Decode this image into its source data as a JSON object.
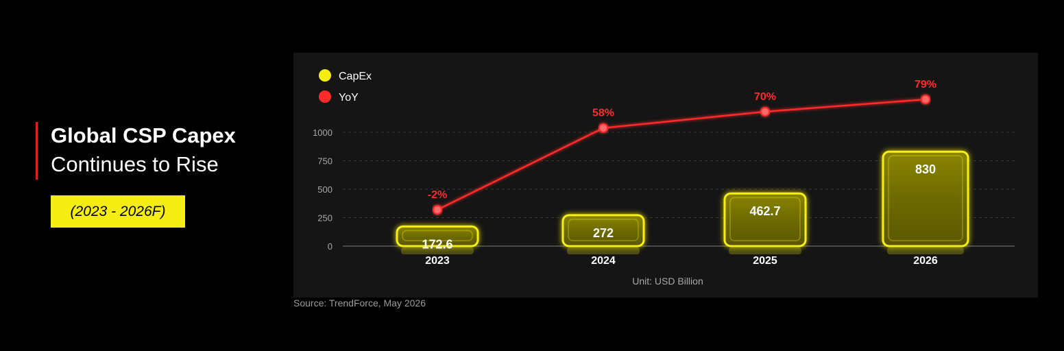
{
  "title": {
    "line1": "Global CSP Capex",
    "line2": "Continues to Rise",
    "period": "(2023 - 2026F)"
  },
  "source": "Source: TrendForce, May 2026",
  "colors": {
    "accent_yellow": "#f6ee13",
    "accent_red": "#ff2a2a",
    "background": "#000000",
    "panel": "#151515"
  },
  "chart_data": {
    "type": "bar",
    "categories": [
      "2023",
      "2024",
      "2025",
      "2026"
    ],
    "series": [
      {
        "name": "CapEx",
        "type": "bar",
        "values": [
          172.6,
          272,
          462.7,
          830
        ],
        "labels": [
          "172.6",
          "272",
          "462.7",
          "830"
        ]
      },
      {
        "name": "YoY",
        "type": "line",
        "values": [
          -2,
          58,
          70,
          79
        ],
        "labels": [
          "-2%",
          "58%",
          "70%",
          "79%"
        ]
      }
    ],
    "yticks": [
      0,
      250,
      500,
      750,
      1000
    ],
    "ylim": [
      0,
      1000
    ],
    "unit": "Unit: USD Billion",
    "legend": [
      "CapEx",
      "YoY"
    ],
    "legend_position": "top-left",
    "grid": true
  }
}
